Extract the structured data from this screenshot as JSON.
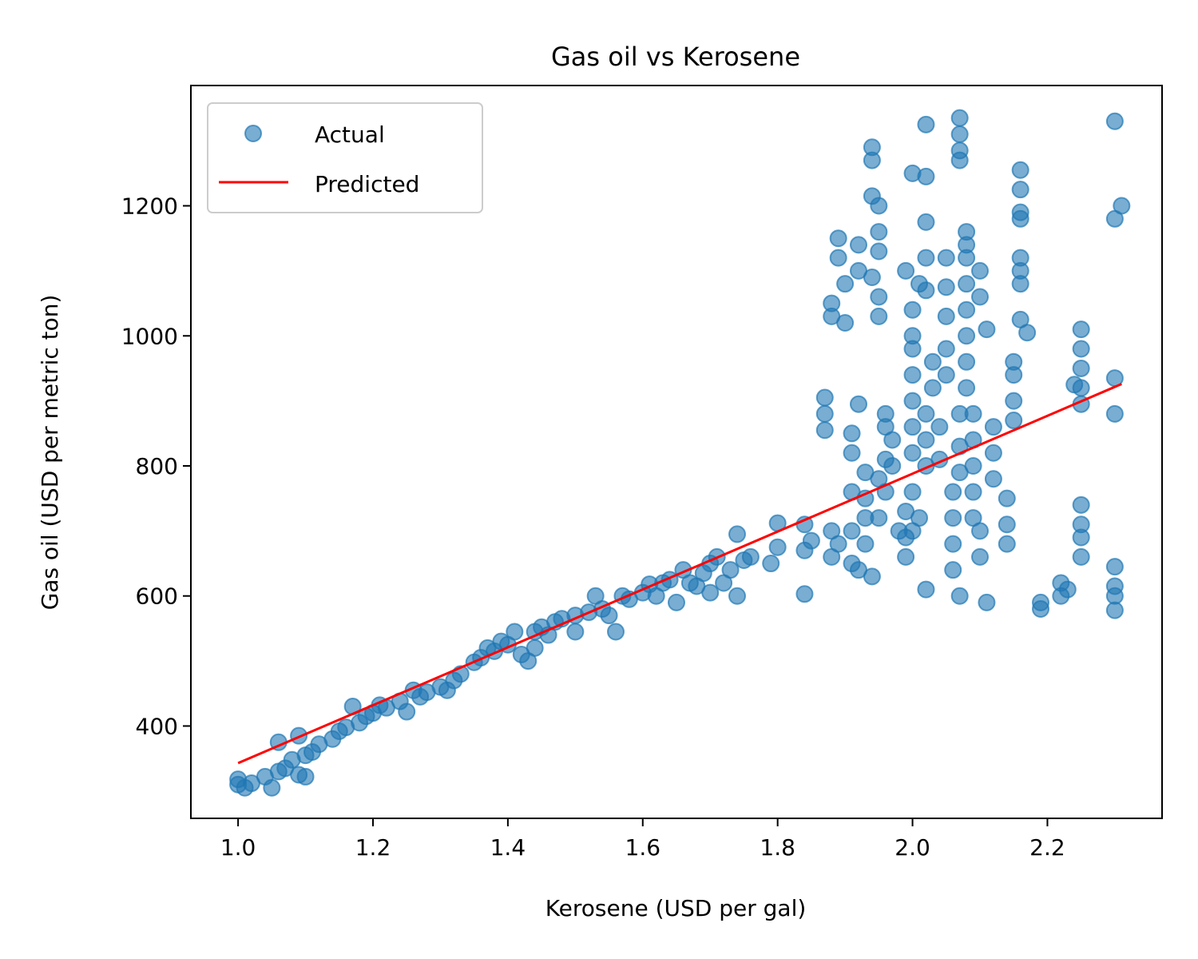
{
  "chart_data": {
    "type": "scatter",
    "title": "Gas oil vs Kerosene",
    "xlabel": "Kerosene (USD per gal)",
    "ylabel": "Gas oil (USD per metric ton)",
    "xlim": [
      0.93,
      2.37
    ],
    "ylim": [
      258,
      1385
    ],
    "xticks": [
      1.0,
      1.2,
      1.4,
      1.6,
      1.8,
      2.0,
      2.2
    ],
    "xtick_labels": [
      "1.0",
      "1.2",
      "1.4",
      "1.6",
      "1.8",
      "2.0",
      "2.2"
    ],
    "yticks": [
      400,
      600,
      800,
      1000,
      1200
    ],
    "ytick_labels": [
      "400",
      "600",
      "800",
      "1000",
      "1200"
    ],
    "grid": false,
    "legend": {
      "position": "top-left",
      "entries": [
        {
          "label": "Actual",
          "marker": "circle",
          "color": "#1f77b4"
        },
        {
          "label": "Predicted",
          "marker": "line",
          "color": "#ff0000"
        }
      ]
    },
    "series": [
      {
        "name": "Actual",
        "kind": "scatter",
        "color": "#1f77b4",
        "opacity": 0.6,
        "points": [
          [
            1.0,
            310
          ],
          [
            1.0,
            318
          ],
          [
            1.01,
            305
          ],
          [
            1.02,
            312
          ],
          [
            1.04,
            322
          ],
          [
            1.05,
            305
          ],
          [
            1.06,
            330
          ],
          [
            1.06,
            375
          ],
          [
            1.07,
            335
          ],
          [
            1.08,
            348
          ],
          [
            1.09,
            325
          ],
          [
            1.09,
            385
          ],
          [
            1.1,
            355
          ],
          [
            1.1,
            322
          ],
          [
            1.11,
            360
          ],
          [
            1.12,
            372
          ],
          [
            1.14,
            380
          ],
          [
            1.15,
            392
          ],
          [
            1.16,
            398
          ],
          [
            1.17,
            430
          ],
          [
            1.18,
            405
          ],
          [
            1.19,
            415
          ],
          [
            1.2,
            420
          ],
          [
            1.21,
            432
          ],
          [
            1.22,
            428
          ],
          [
            1.24,
            438
          ],
          [
            1.25,
            422
          ],
          [
            1.26,
            455
          ],
          [
            1.27,
            445
          ],
          [
            1.28,
            452
          ],
          [
            1.3,
            460
          ],
          [
            1.31,
            455
          ],
          [
            1.32,
            470
          ],
          [
            1.33,
            480
          ],
          [
            1.35,
            498
          ],
          [
            1.36,
            505
          ],
          [
            1.37,
            520
          ],
          [
            1.38,
            515
          ],
          [
            1.39,
            530
          ],
          [
            1.4,
            525
          ],
          [
            1.41,
            545
          ],
          [
            1.42,
            510
          ],
          [
            1.43,
            500
          ],
          [
            1.44,
            520
          ],
          [
            1.44,
            545
          ],
          [
            1.45,
            552
          ],
          [
            1.46,
            540
          ],
          [
            1.47,
            560
          ],
          [
            1.48,
            565
          ],
          [
            1.5,
            545
          ],
          [
            1.5,
            570
          ],
          [
            1.52,
            575
          ],
          [
            1.53,
            600
          ],
          [
            1.54,
            580
          ],
          [
            1.55,
            570
          ],
          [
            1.56,
            545
          ],
          [
            1.57,
            600
          ],
          [
            1.58,
            595
          ],
          [
            1.6,
            605
          ],
          [
            1.61,
            618
          ],
          [
            1.62,
            600
          ],
          [
            1.63,
            620
          ],
          [
            1.64,
            625
          ],
          [
            1.65,
            590
          ],
          [
            1.66,
            640
          ],
          [
            1.67,
            620
          ],
          [
            1.68,
            615
          ],
          [
            1.69,
            635
          ],
          [
            1.7,
            650
          ],
          [
            1.7,
            605
          ],
          [
            1.71,
            660
          ],
          [
            1.72,
            620
          ],
          [
            1.73,
            640
          ],
          [
            1.74,
            695
          ],
          [
            1.74,
            600
          ],
          [
            1.75,
            655
          ],
          [
            1.76,
            660
          ],
          [
            1.79,
            650
          ],
          [
            1.8,
            712
          ],
          [
            1.8,
            675
          ],
          [
            1.84,
            603
          ],
          [
            1.84,
            710
          ],
          [
            1.84,
            670
          ],
          [
            1.85,
            685
          ],
          [
            1.87,
            905
          ],
          [
            1.87,
            880
          ],
          [
            1.87,
            855
          ],
          [
            1.88,
            1050
          ],
          [
            1.88,
            1030
          ],
          [
            1.88,
            700
          ],
          [
            1.88,
            660
          ],
          [
            1.89,
            680
          ],
          [
            1.89,
            1150
          ],
          [
            1.89,
            1120
          ],
          [
            1.9,
            1020
          ],
          [
            1.9,
            1080
          ],
          [
            1.91,
            650
          ],
          [
            1.91,
            700
          ],
          [
            1.91,
            760
          ],
          [
            1.91,
            820
          ],
          [
            1.91,
            850
          ],
          [
            1.92,
            895
          ],
          [
            1.92,
            1100
          ],
          [
            1.92,
            1140
          ],
          [
            1.92,
            640
          ],
          [
            1.93,
            680
          ],
          [
            1.93,
            720
          ],
          [
            1.93,
            750
          ],
          [
            1.93,
            790
          ],
          [
            1.94,
            1290
          ],
          [
            1.94,
            1270
          ],
          [
            1.94,
            1215
          ],
          [
            1.94,
            630
          ],
          [
            1.94,
            1090
          ],
          [
            1.95,
            1030
          ],
          [
            1.95,
            720
          ],
          [
            1.95,
            780
          ],
          [
            1.95,
            1200
          ],
          [
            1.95,
            1160
          ],
          [
            1.95,
            1130
          ],
          [
            1.95,
            1060
          ],
          [
            1.96,
            760
          ],
          [
            1.96,
            810
          ],
          [
            1.96,
            860
          ],
          [
            1.96,
            880
          ],
          [
            1.97,
            800
          ],
          [
            1.97,
            840
          ],
          [
            1.98,
            700
          ],
          [
            1.99,
            660
          ],
          [
            1.99,
            690
          ],
          [
            1.99,
            730
          ],
          [
            1.99,
            1100
          ],
          [
            2.0,
            1250
          ],
          [
            2.0,
            1040
          ],
          [
            2.0,
            1000
          ],
          [
            2.0,
            980
          ],
          [
            2.0,
            940
          ],
          [
            2.0,
            900
          ],
          [
            2.0,
            860
          ],
          [
            2.0,
            820
          ],
          [
            2.0,
            760
          ],
          [
            2.0,
            700
          ],
          [
            2.01,
            1080
          ],
          [
            2.01,
            720
          ],
          [
            2.02,
            1325
          ],
          [
            2.02,
            1245
          ],
          [
            2.02,
            1175
          ],
          [
            2.02,
            1120
          ],
          [
            2.02,
            1070
          ],
          [
            2.02,
            880
          ],
          [
            2.02,
            840
          ],
          [
            2.02,
            800
          ],
          [
            2.02,
            610
          ],
          [
            2.03,
            960
          ],
          [
            2.03,
            920
          ],
          [
            2.04,
            860
          ],
          [
            2.04,
            810
          ],
          [
            2.05,
            1120
          ],
          [
            2.05,
            1075
          ],
          [
            2.05,
            1030
          ],
          [
            2.05,
            980
          ],
          [
            2.05,
            940
          ],
          [
            2.06,
            760
          ],
          [
            2.06,
            720
          ],
          [
            2.06,
            680
          ],
          [
            2.06,
            640
          ],
          [
            2.07,
            1335
          ],
          [
            2.07,
            1310
          ],
          [
            2.07,
            1285
          ],
          [
            2.07,
            1270
          ],
          [
            2.07,
            880
          ],
          [
            2.07,
            830
          ],
          [
            2.07,
            790
          ],
          [
            2.07,
            600
          ],
          [
            2.08,
            1160
          ],
          [
            2.08,
            1140
          ],
          [
            2.08,
            1120
          ],
          [
            2.08,
            1080
          ],
          [
            2.08,
            1040
          ],
          [
            2.08,
            1000
          ],
          [
            2.08,
            960
          ],
          [
            2.08,
            920
          ],
          [
            2.09,
            880
          ],
          [
            2.09,
            840
          ],
          [
            2.09,
            800
          ],
          [
            2.09,
            760
          ],
          [
            2.09,
            720
          ],
          [
            2.1,
            1100
          ],
          [
            2.1,
            1060
          ],
          [
            2.1,
            700
          ],
          [
            2.1,
            660
          ],
          [
            2.11,
            590
          ],
          [
            2.11,
            1010
          ],
          [
            2.12,
            860
          ],
          [
            2.12,
            820
          ],
          [
            2.12,
            780
          ],
          [
            2.14,
            750
          ],
          [
            2.14,
            710
          ],
          [
            2.14,
            680
          ],
          [
            2.15,
            960
          ],
          [
            2.15,
            940
          ],
          [
            2.15,
            900
          ],
          [
            2.15,
            870
          ],
          [
            2.16,
            1255
          ],
          [
            2.16,
            1225
          ],
          [
            2.16,
            1190
          ],
          [
            2.16,
            1180
          ],
          [
            2.16,
            1120
          ],
          [
            2.16,
            1100
          ],
          [
            2.16,
            1080
          ],
          [
            2.16,
            1025
          ],
          [
            2.17,
            1005
          ],
          [
            2.19,
            580
          ],
          [
            2.19,
            590
          ],
          [
            2.22,
            600
          ],
          [
            2.22,
            620
          ],
          [
            2.23,
            610
          ],
          [
            2.24,
            925
          ],
          [
            2.25,
            1010
          ],
          [
            2.25,
            980
          ],
          [
            2.25,
            950
          ],
          [
            2.25,
            920
          ],
          [
            2.25,
            895
          ],
          [
            2.25,
            740
          ],
          [
            2.25,
            710
          ],
          [
            2.25,
            690
          ],
          [
            2.25,
            660
          ],
          [
            2.3,
            1330
          ],
          [
            2.3,
            1180
          ],
          [
            2.3,
            935
          ],
          [
            2.3,
            880
          ],
          [
            2.3,
            645
          ],
          [
            2.3,
            615
          ],
          [
            2.3,
            600
          ],
          [
            2.3,
            578
          ],
          [
            2.31,
            1200
          ]
        ]
      },
      {
        "name": "Predicted",
        "kind": "line",
        "color": "#ff0000",
        "points": [
          [
            1.0,
            343
          ],
          [
            2.31,
            926
          ]
        ]
      }
    ]
  }
}
